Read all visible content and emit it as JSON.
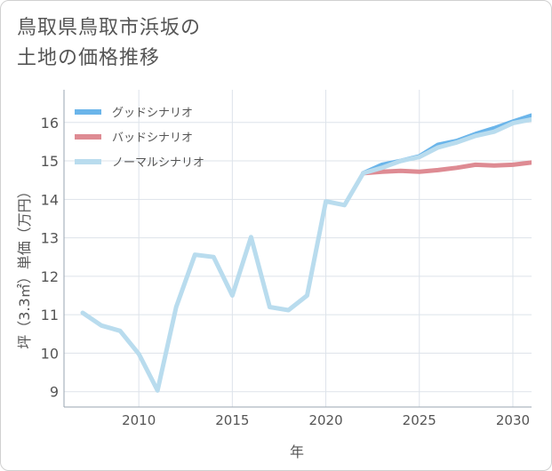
{
  "title": {
    "line1": "鳥取県鳥取市浜坂の",
    "line2": "土地の価格推移"
  },
  "chart_data": {
    "type": "line",
    "xlabel": "年",
    "ylabel": "坪（3.3㎡）単価（万円）",
    "xlim": [
      2006,
      2031
    ],
    "ylim": [
      8.6,
      16.85
    ],
    "xticks": [
      2010,
      2015,
      2020,
      2025,
      2030
    ],
    "yticks": [
      9,
      10,
      11,
      12,
      13,
      14,
      15,
      16
    ],
    "grid": true,
    "legend_position": "top-left",
    "series": [
      {
        "name": "グッドシナリオ",
        "color": "#6bb5ea",
        "x": [
          2022,
          2023,
          2024,
          2025,
          2026,
          2027,
          2028,
          2029,
          2030,
          2031
        ],
        "y": [
          14.68,
          14.9,
          15.0,
          15.12,
          15.42,
          15.52,
          15.7,
          15.85,
          16.02,
          16.18
        ]
      },
      {
        "name": "バッドシナリオ",
        "color": "#de8b93",
        "x": [
          2022,
          2023,
          2024,
          2025,
          2026,
          2027,
          2028,
          2029,
          2030,
          2031
        ],
        "y": [
          14.68,
          14.72,
          14.74,
          14.72,
          14.76,
          14.82,
          14.9,
          14.88,
          14.9,
          14.96
        ]
      },
      {
        "name": "ノーマルシナリオ",
        "color": "#b9dcee",
        "x": [
          2007,
          2008,
          2009,
          2010,
          2011,
          2012,
          2013,
          2014,
          2015,
          2016,
          2017,
          2018,
          2019,
          2020,
          2021,
          2022,
          2023,
          2024,
          2025,
          2026,
          2027,
          2028,
          2029,
          2030,
          2031
        ],
        "y": [
          11.05,
          10.72,
          10.58,
          9.98,
          9.03,
          11.2,
          12.56,
          12.5,
          11.5,
          13.02,
          11.2,
          11.12,
          11.5,
          13.95,
          13.85,
          14.68,
          14.82,
          15.0,
          15.1,
          15.35,
          15.48,
          15.65,
          15.76,
          15.98,
          16.08
        ]
      }
    ]
  }
}
